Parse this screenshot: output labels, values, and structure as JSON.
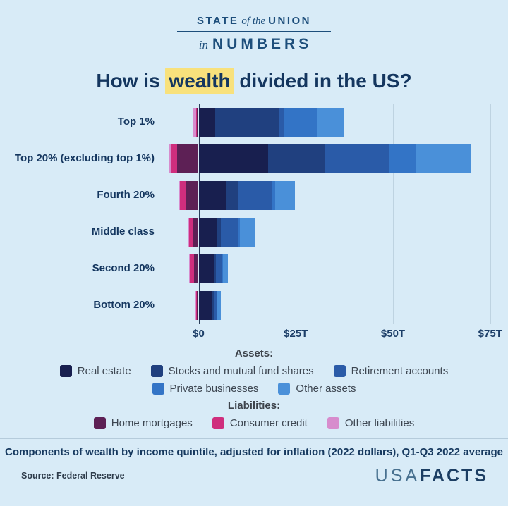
{
  "header": {
    "line1_pre": "STATE",
    "line1_mid": "of the",
    "line1_post": "UNION",
    "line2_pre": "in",
    "line2_post": "NUMBERS"
  },
  "title": {
    "prefix": "How is",
    "highlight": "wealth",
    "suffix": "divided in the US?"
  },
  "chart_data": {
    "type": "bar",
    "orientation": "horizontal",
    "stacked": true,
    "unit": "trillions of 2022 dollars",
    "categories": [
      "Top 1%",
      "Top 20% (excluding top 1%)",
      "Fourth 20%",
      "Middle class",
      "Second 20%",
      "Bottom 20%"
    ],
    "asset_series": [
      {
        "name": "Real estate",
        "color": "#181f4f",
        "values": [
          4.2,
          17.9,
          7.0,
          4.9,
          3.9,
          3.6
        ]
      },
      {
        "name": "Stocks and mutual fund shares",
        "color": "#20407f",
        "values": [
          16.4,
          14.5,
          3.3,
          0.9,
          0.5,
          0.3
        ]
      },
      {
        "name": "Retirement accounts",
        "color": "#2a5ba8",
        "values": [
          1.3,
          16.5,
          8.5,
          4.2,
          1.7,
          0.7
        ]
      },
      {
        "name": "Private businesses",
        "color": "#3374c6",
        "values": [
          8.7,
          7.1,
          0.9,
          0.6,
          0.2,
          0.1
        ]
      },
      {
        "name": "Other assets",
        "color": "#4a90d9",
        "values": [
          6.7,
          14.0,
          5.1,
          3.9,
          1.3,
          1.0
        ]
      }
    ],
    "liability_series": [
      {
        "name": "Home mortgages",
        "color": "#5d2055",
        "values": [
          0.5,
          5.6,
          3.4,
          1.6,
          1.2,
          0.4
        ]
      },
      {
        "name": "Consumer credit",
        "color": "#cf2e7d",
        "values": [
          0.1,
          1.3,
          1.4,
          0.8,
          1.0,
          0.4
        ]
      },
      {
        "name": "Other liabilities",
        "color": "#d78ccd",
        "values": [
          0.9,
          0.6,
          0.4,
          0.2,
          0.2,
          0.1
        ]
      }
    ],
    "x_ticks": [
      "$0",
      "$25T",
      "$50T",
      "$75T"
    ],
    "x_tick_values": [
      0,
      25,
      50,
      75
    ],
    "xlim": [
      -9,
      79.5
    ],
    "grid": true,
    "legend_position": "bottom",
    "legend_assets_header": "Assets:",
    "legend_liabilities_header": "Liabilities:"
  },
  "footer": {
    "note": "Components of wealth by income quintile, adjusted for inflation (2022 dollars), Q1-Q3 2022 average",
    "source": "Source: Federal Reserve",
    "logo_light": "USA",
    "logo_bold": "FACTS"
  }
}
